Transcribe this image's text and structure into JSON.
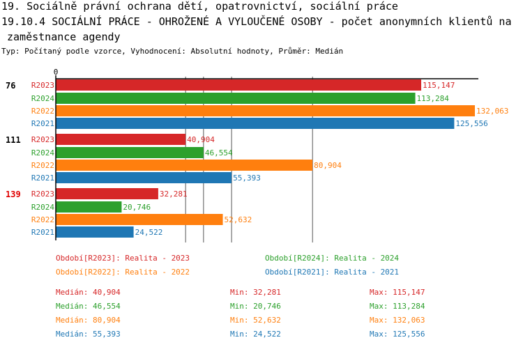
{
  "title_line1": "19. Sociálně právní ochrana dětí, opatrovnictví, sociální práce",
  "title_line2": "19.10.4 SOCIÁLNÍ PRÁCE - OHROŽENÉ A VYLOUČENÉ OSOBY - počet anonymních klientů na",
  "title_line3": "zaměstnance agendy",
  "subtitle": "Typ: Počítaný podle vzorce, Vyhodnocení: Absolutní hodnoty, Průměr: Medián",
  "chart_data": {
    "type": "bar",
    "orientation": "horizontal",
    "x_tick_zero": "0",
    "categories": [
      "76",
      "111",
      "139"
    ],
    "category_colors": [
      "#000000",
      "#000000",
      "#e00000"
    ],
    "series": [
      {
        "name": "R2023",
        "color": "#d62728",
        "values": [
          115147,
          40904,
          32281
        ],
        "labels": [
          "115,147",
          "40,904",
          "32,281"
        ]
      },
      {
        "name": "R2024",
        "color": "#2ca02c",
        "values": [
          113284,
          46554,
          20746
        ],
        "labels": [
          "113,284",
          "46,554",
          "20,746"
        ]
      },
      {
        "name": "R2022",
        "color": "#ff7f0e",
        "values": [
          132063,
          80904,
          52632
        ],
        "labels": [
          "132,063",
          "80,904",
          "52,632"
        ]
      },
      {
        "name": "R2021",
        "color": "#1f77b4",
        "values": [
          125556,
          55393,
          24522
        ],
        "labels": [
          "125,556",
          "55,393",
          "24,522"
        ]
      }
    ],
    "median_lines": [
      40904,
      46554,
      80904,
      55393
    ],
    "xlim": [
      0,
      133000
    ],
    "grid": false
  },
  "legend": [
    {
      "text": "Období[R2023]: Realita - 2023",
      "color": "#d62728"
    },
    {
      "text": "Období[R2024]: Realita - 2024",
      "color": "#2ca02c"
    },
    {
      "text": "Období[R2022]: Realita - 2022",
      "color": "#ff7f0e"
    },
    {
      "text": "Období[R2021]: Realita - 2021",
      "color": "#1f77b4"
    }
  ],
  "stats": [
    {
      "median": "Medián: 40,904",
      "min": "Min: 32,281",
      "max": "Max: 115,147",
      "color": "#d62728"
    },
    {
      "median": "Medián: 46,554",
      "min": "Min: 20,746",
      "max": "Max: 113,284",
      "color": "#2ca02c"
    },
    {
      "median": "Medián: 80,904",
      "min": "Min: 52,632",
      "max": "Max: 132,063",
      "color": "#ff7f0e"
    },
    {
      "median": "Medián: 55,393",
      "min": "Min: 24,522",
      "max": "Max: 125,556",
      "color": "#1f77b4"
    }
  ]
}
